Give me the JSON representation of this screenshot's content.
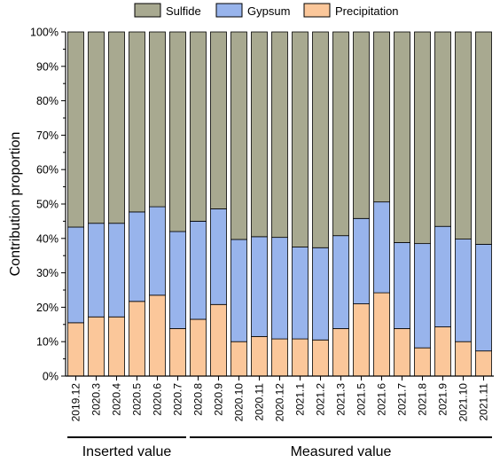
{
  "chart_data": {
    "type": "bar",
    "stacked": true,
    "ylabel": "Contribution proportion",
    "ylim": [
      0,
      100
    ],
    "yticks": [
      "0%",
      "10%",
      "20%",
      "30%",
      "40%",
      "50%",
      "60%",
      "70%",
      "80%",
      "90%",
      "100%"
    ],
    "legend_position": "top",
    "categories": [
      "2019.12",
      "2020.3",
      "2020.4",
      "2020.5",
      "2020.6",
      "2020.7",
      "2020.8",
      "2020.9",
      "2020.10",
      "2020.11",
      "2020.12",
      "2021.1",
      "2021.2",
      "2021.3",
      "2021.5",
      "2021.6",
      "2021.7",
      "2021.8",
      "2021.9",
      "2021.10",
      "2021.11"
    ],
    "series": [
      {
        "name": "Precipitation",
        "color": "#fbc79a",
        "values": [
          15.5,
          17.2,
          17.2,
          21.7,
          23.5,
          13.8,
          16.5,
          20.8,
          10.0,
          11.5,
          10.8,
          10.8,
          10.5,
          13.8,
          21.0,
          24.2,
          13.8,
          8.2,
          14.3,
          10.0,
          7.3
        ]
      },
      {
        "name": "Gypsum",
        "color": "#98b4ec",
        "values": [
          27.8,
          27.2,
          27.2,
          26.0,
          25.7,
          28.2,
          28.5,
          27.8,
          29.7,
          29.0,
          29.5,
          26.7,
          26.8,
          27.0,
          24.8,
          26.4,
          25.0,
          30.3,
          29.2,
          29.8,
          31.0
        ]
      },
      {
        "name": "Sulfide",
        "color": "#a8a990",
        "values": [
          56.7,
          55.6,
          55.6,
          52.3,
          50.8,
          58.0,
          55.0,
          51.4,
          60.3,
          59.5,
          59.7,
          62.5,
          62.7,
          59.2,
          54.2,
          49.4,
          61.2,
          61.5,
          56.5,
          60.2,
          61.7
        ]
      }
    ],
    "legend": [
      "Sulfide",
      "Gypsum",
      "Precipitation"
    ],
    "groups": [
      {
        "label": "Inserted value",
        "from": 0,
        "to": 5
      },
      {
        "label": "Measured value",
        "from": 6,
        "to": 20
      }
    ]
  }
}
